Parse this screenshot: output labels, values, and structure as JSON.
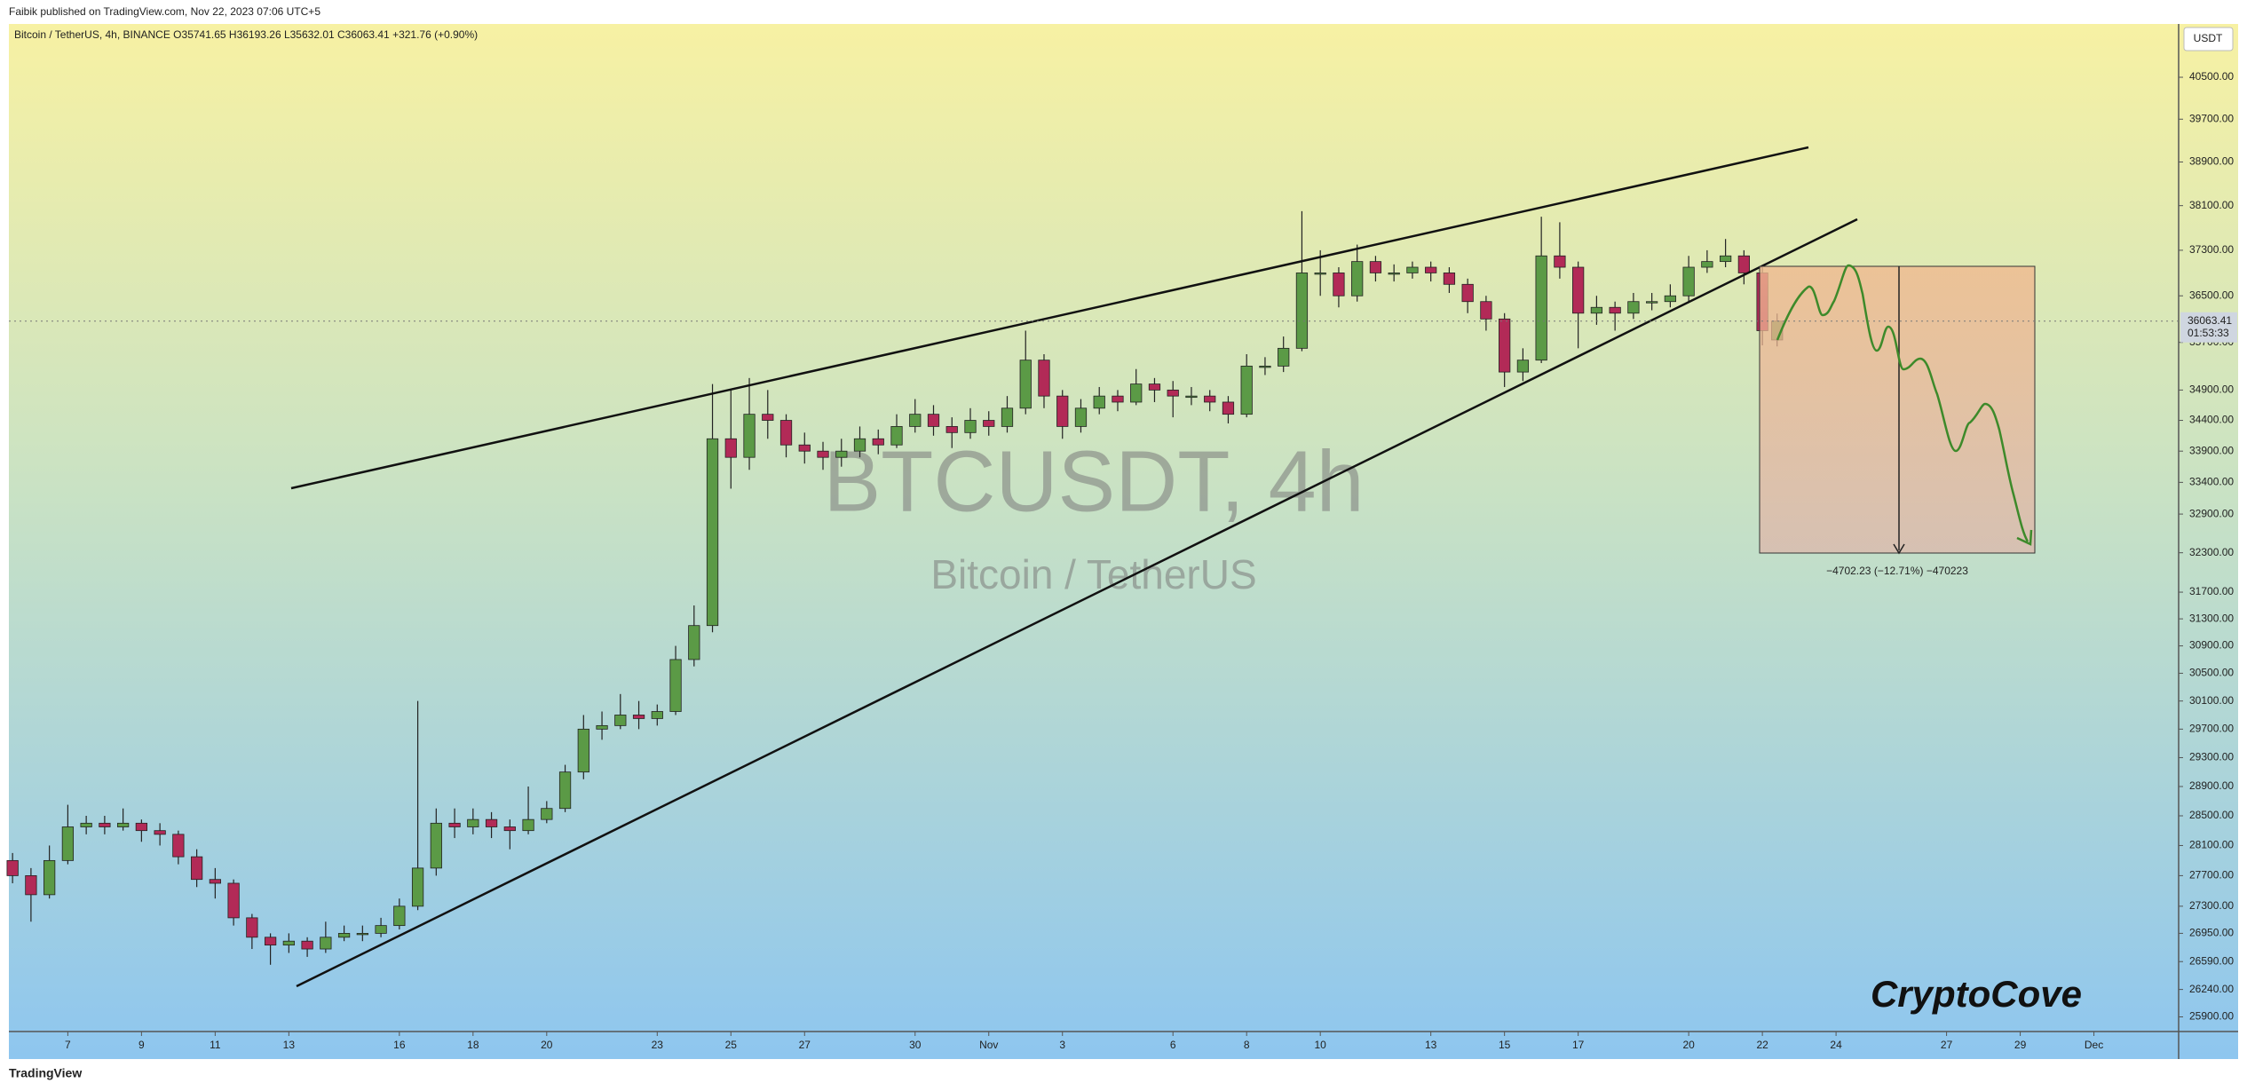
{
  "header": {
    "publisher": "Faibik published on TradingView.com, Nov 22, 2023 07:06 UTC+5",
    "legend": "Bitcoin / TetherUS, 4h, BINANCE  O35741.65  H36193.26  L35632.01  C36063.41  +321.76 (+0.90%)"
  },
  "chart_data": {
    "type": "candlestick",
    "watermark_symbol": "BTCUSDT, 4h",
    "watermark_name": "Bitcoin / TetherUS",
    "currency": "USDT",
    "countdown": "01:53:33",
    "measure_label": "−4702.23 (−12.71%) −470223",
    "brand": "CryptoCove",
    "log_scale": true,
    "up_color": "#5b9a46",
    "down_color": "#b22a57",
    "xlim": [
      -1.6,
      57.3
    ],
    "ylim": [
      25720,
      41540
    ],
    "xticks": [
      {
        "value": 0,
        "label": "7"
      },
      {
        "value": 2,
        "label": "9"
      },
      {
        "value": 4,
        "label": "11"
      },
      {
        "value": 6,
        "label": "13"
      },
      {
        "value": 9,
        "label": "16"
      },
      {
        "value": 11,
        "label": "18"
      },
      {
        "value": 13,
        "label": "20"
      },
      {
        "value": 16,
        "label": "23"
      },
      {
        "value": 18,
        "label": "25"
      },
      {
        "value": 20,
        "label": "27"
      },
      {
        "value": 23,
        "label": "30"
      },
      {
        "value": 25,
        "label": "Nov"
      },
      {
        "value": 27,
        "label": "3"
      },
      {
        "value": 30,
        "label": "6"
      },
      {
        "value": 32,
        "label": "8"
      },
      {
        "value": 34,
        "label": "10"
      },
      {
        "value": 37,
        "label": "13"
      },
      {
        "value": 39,
        "label": "15"
      },
      {
        "value": 41,
        "label": "17"
      },
      {
        "value": 44,
        "label": "20"
      },
      {
        "value": 46,
        "label": "22"
      },
      {
        "value": 48,
        "label": "24"
      },
      {
        "value": 51,
        "label": "27"
      },
      {
        "value": 53,
        "label": "29"
      },
      {
        "value": 55,
        "label": "Dec"
      }
    ],
    "yticks": [
      {
        "value": 40500,
        "label": "40500.00"
      },
      {
        "value": 39700,
        "label": "39700.00"
      },
      {
        "value": 38900,
        "label": "38900.00"
      },
      {
        "value": 38100,
        "label": "38100.00"
      },
      {
        "value": 37300,
        "label": "37300.00"
      },
      {
        "value": 36500,
        "label": "36500.00"
      },
      {
        "value": 35700,
        "label": "35700.00"
      },
      {
        "value": 34900,
        "label": "34900.00"
      },
      {
        "value": 34400,
        "label": "34400.00"
      },
      {
        "value": 33900,
        "label": "33900.00"
      },
      {
        "value": 33400,
        "label": "33400.00"
      },
      {
        "value": 32900,
        "label": "32900.00"
      },
      {
        "value": 32300,
        "label": "32300.00"
      },
      {
        "value": 31700,
        "label": "31700.00"
      },
      {
        "value": 31300,
        "label": "31300.00"
      },
      {
        "value": 30900,
        "label": "30900.00"
      },
      {
        "value": 30500,
        "label": "30500.00"
      },
      {
        "value": 30100,
        "label": "30100.00"
      },
      {
        "value": 29700,
        "label": "29700.00"
      },
      {
        "value": 29300,
        "label": "29300.00"
      },
      {
        "value": 28900,
        "label": "28900.00"
      },
      {
        "value": 28500,
        "label": "28500.00"
      },
      {
        "value": 28100,
        "label": "28100.00"
      },
      {
        "value": 27700,
        "label": "27700.00"
      },
      {
        "value": 27300,
        "label": "27300.00"
      },
      {
        "value": 26950,
        "label": "26950.00"
      },
      {
        "value": 26590,
        "label": "26590.00"
      },
      {
        "value": 26240,
        "label": "26240.00"
      },
      {
        "value": 25900,
        "label": "25900.00"
      }
    ],
    "x": [
      -1.5,
      -1,
      -0.5,
      0,
      0.5,
      1,
      1.5,
      2,
      2.5,
      3,
      3.5,
      4,
      4.5,
      5,
      5.5,
      6,
      6.5,
      7,
      7.5,
      8,
      8.5,
      9,
      9.5,
      10,
      10.5,
      11,
      11.5,
      12,
      12.5,
      13,
      13.5,
      14,
      14.5,
      15,
      15.5,
      16,
      16.5,
      17,
      17.5,
      18,
      18.5,
      19,
      19.5,
      20,
      20.5,
      21,
      21.5,
      22,
      22.5,
      23,
      23.5,
      24,
      24.5,
      25,
      25.5,
      26,
      26.5,
      27,
      27.5,
      28,
      28.5,
      29,
      29.5,
      30,
      30.5,
      31,
      31.5,
      32,
      32.5,
      33,
      33.5,
      34,
      34.5,
      35,
      35.5,
      36,
      36.5,
      37,
      37.5,
      38,
      38.5,
      39,
      39.5,
      40,
      40.5,
      41,
      41.5,
      42,
      42.5,
      43,
      43.5,
      44,
      44.5,
      45,
      45.5,
      46,
      46.4
    ],
    "open": [
      27900,
      27700,
      27450,
      27900,
      28350,
      28400,
      28350,
      28400,
      28300,
      28250,
      27950,
      27650,
      27600,
      27150,
      26900,
      26800,
      26850,
      26750,
      26900,
      26950,
      26950,
      27050,
      27300,
      27800,
      28400,
      28350,
      28450,
      28350,
      28300,
      28450,
      28600,
      29100,
      29700,
      29750,
      29900,
      29850,
      29950,
      30700,
      31200,
      34100,
      33800,
      34500,
      34400,
      34000,
      33900,
      33800,
      33900,
      34100,
      34000,
      34300,
      34500,
      34300,
      34200,
      34400,
      34300,
      34600,
      35400,
      34800,
      34300,
      34600,
      34800,
      34700,
      35000,
      34900,
      34800,
      34800,
      34700,
      34500,
      35300,
      35300,
      35600,
      36900,
      36900,
      36500,
      37100,
      36900,
      36900,
      37000,
      36900,
      36700,
      36400,
      36100,
      35200,
      35400,
      37200,
      37000,
      36200,
      36300,
      36200,
      36400,
      36400,
      36500,
      37000,
      37100,
      37200,
      36900,
      35741.65
    ],
    "high": [
      28000,
      27800,
      28100,
      28650,
      28500,
      28500,
      28600,
      28450,
      28400,
      28300,
      28050,
      27800,
      27650,
      27200,
      26950,
      26950,
      26900,
      27100,
      27050,
      27050,
      27150,
      27400,
      30100,
      28600,
      28600,
      28600,
      28550,
      28450,
      28900,
      28700,
      29200,
      29900,
      29950,
      30200,
      30100,
      30050,
      30900,
      31500,
      35000,
      34900,
      35100,
      34900,
      34500,
      34200,
      34050,
      34100,
      34300,
      34250,
      34500,
      34750,
      34650,
      34450,
      34600,
      34550,
      34800,
      35900,
      35500,
      34900,
      34750,
      34950,
      34900,
      35250,
      35100,
      35050,
      34950,
      34900,
      34800,
      35500,
      35450,
      35800,
      38000,
      37300,
      37000,
      37400,
      37200,
      37050,
      37100,
      37100,
      37000,
      36800,
      36500,
      36200,
      35600,
      37900,
      37800,
      37100,
      36500,
      36400,
      36550,
      36550,
      36700,
      37200,
      37300,
      37500,
      37300,
      37000,
      36193.26
    ],
    "low": [
      27600,
      27100,
      27400,
      27850,
      28250,
      28250,
      28300,
      28150,
      28100,
      27850,
      27550,
      27400,
      27050,
      26750,
      26550,
      26700,
      26650,
      26700,
      26850,
      26850,
      26900,
      27000,
      27250,
      27700,
      28200,
      28250,
      28200,
      28050,
      28250,
      28400,
      28550,
      29000,
      29550,
      29700,
      29700,
      29750,
      29900,
      30600,
      31100,
      33300,
      33600,
      34100,
      33800,
      33700,
      33600,
      33650,
      33800,
      33850,
      33950,
      34200,
      34150,
      33950,
      34100,
      34150,
      34200,
      34500,
      34600,
      34100,
      34200,
      34500,
      34550,
      34650,
      34700,
      34450,
      34650,
      34550,
      34350,
      34450,
      35150,
      35200,
      35550,
      36500,
      36300,
      36400,
      36750,
      36750,
      36800,
      36750,
      36550,
      36200,
      35900,
      34950,
      35050,
      35350,
      36800,
      35600,
      36000,
      35900,
      36100,
      36250,
      36300,
      36400,
      36900,
      37000,
      36700,
      35650,
      35632.01
    ],
    "close": [
      27700,
      27450,
      27900,
      28350,
      28400,
      28350,
      28400,
      28300,
      28250,
      27950,
      27650,
      27600,
      27150,
      26900,
      26800,
      26850,
      26750,
      26900,
      26950,
      26950,
      27050,
      27300,
      27800,
      28400,
      28350,
      28450,
      28350,
      28300,
      28450,
      28600,
      29100,
      29700,
      29750,
      29900,
      29850,
      29950,
      30700,
      31200,
      34100,
      33800,
      34500,
      34400,
      34000,
      33900,
      33800,
      33900,
      34100,
      34000,
      34300,
      34500,
      34300,
      34200,
      34400,
      34300,
      34600,
      35400,
      34800,
      34300,
      34600,
      34800,
      34700,
      35000,
      34900,
      34800,
      34800,
      34700,
      34500,
      35300,
      35300,
      35600,
      36900,
      36900,
      36500,
      37100,
      36900,
      36900,
      37000,
      36900,
      36700,
      36400,
      36100,
      35200,
      35400,
      37200,
      37000,
      36200,
      36300,
      36200,
      36400,
      36400,
      36500,
      37000,
      37100,
      37200,
      36900,
      35900,
      36063.41
    ]
  },
  "footer": {
    "logo": "TradingView"
  }
}
